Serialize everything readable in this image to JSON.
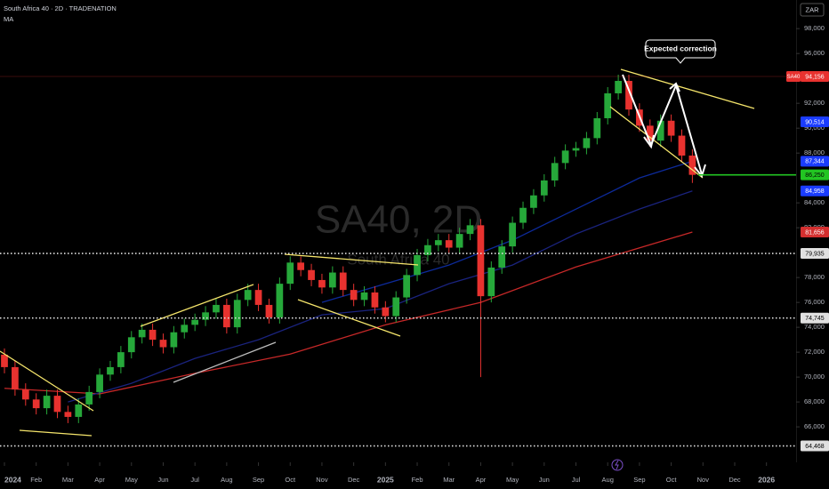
{
  "chart_data": {
    "type": "candlestick",
    "title": "South Africa 40 · 2D · TRADENATION",
    "indicator": "MA",
    "currency": "ZAR",
    "watermark": "SA40, 2D",
    "watermark_sub": "South Africa 40",
    "annotation": "Expected correction",
    "up_color": "#26a83a",
    "down_color": "#e8322f",
    "open": [
      71800,
      70800,
      69000,
      68200,
      67500,
      68500,
      67200,
      66800,
      67800,
      68800,
      70200,
      70800,
      72000,
      73200,
      73800,
      73000,
      72400,
      73600,
      74200,
      74600,
      75200,
      75800,
      74000,
      76200,
      77000,
      75800,
      74800,
      77500,
      79200,
      78600,
      77800,
      77200,
      78400,
      77000,
      76200,
      76800,
      75600,
      74900,
      76400,
      78200,
      79800,
      80600,
      81000,
      80400,
      81500,
      82200,
      76500,
      78800,
      80500,
      82400,
      83600,
      84600,
      85800,
      87200,
      88200,
      88400,
      89200,
      90800,
      92800,
      93800,
      91500,
      90200,
      89000,
      90600,
      89400,
      87800
    ],
    "high": [
      72300,
      71300,
      69500,
      68700,
      69000,
      69000,
      67700,
      68300,
      69300,
      70700,
      71300,
      72500,
      73700,
      74300,
      74300,
      73500,
      74100,
      74700,
      75100,
      75700,
      76300,
      76300,
      76700,
      77500,
      77500,
      76300,
      78000,
      79700,
      79700,
      79100,
      78300,
      78900,
      78900,
      77500,
      77300,
      77300,
      76100,
      76900,
      78700,
      80300,
      81100,
      81500,
      81500,
      82000,
      82700,
      82700,
      79300,
      81000,
      82900,
      84100,
      85100,
      86300,
      87700,
      88700,
      88900,
      89700,
      91300,
      93300,
      94300,
      94300,
      92000,
      90700,
      91100,
      91100,
      89900,
      88300
    ],
    "low": [
      70300,
      68500,
      67700,
      67000,
      67000,
      66700,
      66300,
      66300,
      67300,
      68300,
      69700,
      70300,
      71500,
      72700,
      72500,
      71900,
      71900,
      73100,
      73700,
      74100,
      74700,
      73500,
      73500,
      75700,
      75300,
      74300,
      74300,
      77000,
      78100,
      77300,
      76700,
      76700,
      76500,
      75700,
      75700,
      75100,
      74400,
      74400,
      75900,
      77700,
      79300,
      80100,
      79900,
      79900,
      81000,
      70000,
      76000,
      78300,
      80000,
      81900,
      83100,
      84100,
      85300,
      86700,
      87700,
      87900,
      88700,
      90300,
      92300,
      91000,
      89700,
      88500,
      88500,
      88900,
      87300,
      85600
    ],
    "close": [
      70800,
      69000,
      68200,
      67500,
      68500,
      67200,
      66800,
      67800,
      68800,
      70200,
      70800,
      72000,
      73200,
      73800,
      73000,
      72400,
      73600,
      74200,
      74600,
      75200,
      75800,
      74000,
      76200,
      77000,
      75800,
      74800,
      77500,
      79200,
      78600,
      77800,
      77200,
      78400,
      77000,
      76200,
      76800,
      75600,
      74900,
      76400,
      78200,
      79800,
      80600,
      81000,
      80400,
      81500,
      82200,
      76500,
      78800,
      80500,
      82400,
      83600,
      84600,
      85800,
      87200,
      88200,
      88400,
      89200,
      90800,
      92800,
      93800,
      91500,
      90200,
      89000,
      90600,
      89400,
      87800,
      86250
    ],
    "moving_averages": [
      {
        "color": "#c62828",
        "x": [
          0,
          9,
          18,
          27,
          36,
          45,
          54,
          65
        ],
        "values": [
          69100,
          68650,
          70300,
          71850,
          74200,
          76000,
          78850,
          81656
        ]
      },
      {
        "color": "#1a237e",
        "x": [
          6,
          12,
          18,
          24,
          30,
          36,
          42,
          48,
          54,
          60,
          65
        ],
        "values": [
          68000,
          69500,
          71500,
          73000,
          75000,
          75500,
          77500,
          79000,
          81500,
          83500,
          84958
        ]
      },
      {
        "color": "#0d2a9a",
        "x": [
          30,
          42,
          48,
          54,
          60,
          65
        ],
        "values": [
          76000,
          79000,
          81000,
          83500,
          86000,
          87344
        ]
      }
    ],
    "levels": [
      {
        "value": 94156,
        "label": "94,156",
        "tag": "SA40",
        "color": "#e8322f",
        "line": "thin"
      },
      {
        "value": 90514,
        "label": "90,514",
        "color": "#1a3cff",
        "line": "none"
      },
      {
        "value": 87344,
        "label": "87,344",
        "color": "#1a3cff",
        "line": "none"
      },
      {
        "value": 86250,
        "label": "86,250",
        "color": "#22c522",
        "line": "partial"
      },
      {
        "value": 84958,
        "label": "84,958",
        "color": "#1a3cff",
        "line": "none"
      },
      {
        "value": 81656,
        "label": "81,656",
        "color": "#d32f2f",
        "line": "none"
      },
      {
        "value": 79935,
        "label": "79,935",
        "color": "#e0e0e0",
        "line": "dotted"
      },
      {
        "value": 74745,
        "label": "74,745",
        "color": "#e0e0e0",
        "line": "dotted"
      },
      {
        "value": 64468,
        "label": "64,468",
        "color": "#e0e0e0",
        "line": "dotted"
      }
    ],
    "xlim": [
      -0.42,
      74.8
    ],
    "ylim": [
      63150,
      100300
    ],
    "yticks": [
      {
        "value": 98000,
        "label": "98,000"
      },
      {
        "value": 96000,
        "label": "96,000"
      },
      {
        "value": 92000,
        "label": "92,000"
      },
      {
        "value": 90000,
        "label": "90,000"
      },
      {
        "value": 88000,
        "label": "88,000"
      },
      {
        "value": 84000,
        "label": "84,000"
      },
      {
        "value": 82000,
        "label": "82,000"
      },
      {
        "value": 78000,
        "label": "78,000"
      },
      {
        "value": 76000,
        "label": "76,000"
      },
      {
        "value": 74000,
        "label": "74,000"
      },
      {
        "value": 72000,
        "label": "72,000"
      },
      {
        "value": 70000,
        "label": "70,000"
      },
      {
        "value": 68000,
        "label": "68,000"
      },
      {
        "value": 66000,
        "label": "66,000"
      }
    ],
    "xticks": [
      {
        "value": 0,
        "label": "2024"
      },
      {
        "value": 3,
        "label": "Feb"
      },
      {
        "value": 6,
        "label": "Mar"
      },
      {
        "value": 9,
        "label": "Apr"
      },
      {
        "value": 12,
        "label": "May"
      },
      {
        "value": 15,
        "label": "Jun"
      },
      {
        "value": 18,
        "label": "Jul"
      },
      {
        "value": 21,
        "label": "Aug"
      },
      {
        "value": 24,
        "label": "Sep"
      },
      {
        "value": 27,
        "label": "Oct"
      },
      {
        "value": 30,
        "label": "Nov"
      },
      {
        "value": 33,
        "label": "Dec"
      },
      {
        "value": 36,
        "label": "2025"
      },
      {
        "value": 39,
        "label": "Feb"
      },
      {
        "value": 42,
        "label": "Mar"
      },
      {
        "value": 45,
        "label": "Apr"
      },
      {
        "value": 48,
        "label": "May"
      },
      {
        "value": 51,
        "label": "Jun"
      },
      {
        "value": 54,
        "label": "Jul"
      },
      {
        "value": 57,
        "label": "Aug"
      },
      {
        "value": 60,
        "label": "Sep"
      },
      {
        "value": 63,
        "label": "Oct"
      },
      {
        "value": 66,
        "label": "Nov"
      },
      {
        "value": 69,
        "label": "Dec"
      },
      {
        "value": 72,
        "label": "2026"
      }
    ]
  }
}
